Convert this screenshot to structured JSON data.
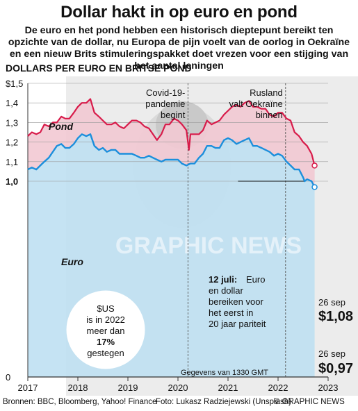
{
  "header": {
    "title": "Dollar hakt in op euro en pond",
    "subtitle": "De euro en het pond hebben een historisch dieptepunt bereikt ten opzichte van de dollar, nu Europa de pijn voelt van de oorlog in Oekraïne en een nieuw Brits stimuleringspakket doet vrezen voor een stijging van het aantal leningen",
    "units": "DOLLARS PER EURO EN BRITSE POND"
  },
  "annotations": {
    "covid": [
      "Covid-19-",
      "pandemie",
      "begint"
    ],
    "russia": [
      "Rusland",
      "valt Oekraïne",
      "binnen"
    ],
    "parity_bold": "12 juli:",
    "parity": [
      " Euro",
      "en dollar",
      "bereiken voor",
      "het eerst in",
      "20 jaar pariteit"
    ],
    "usd_note": [
      "$US",
      "is in 2022",
      "meer dan",
      "17%",
      "gestegen"
    ],
    "gbp_date": "26 sep",
    "gbp_value": "$1,08",
    "eur_date": "26 sep",
    "eur_value": "$0,97",
    "data_note": "Gegevens van 1330 GMT",
    "watermark": "GRAPHIC NEWS"
  },
  "footer": {
    "sources": "Bronnen: BBC, Bloomberg, Yahoo! Finance",
    "photo": "Foto: Lukasz Radziejewski (Unsplash)",
    "credit": "© GRAPHIC NEWS"
  },
  "colors": {
    "pound_line": "#d81b4a",
    "pound_fill": "#f2c9d3",
    "euro_line": "#1c8fdc",
    "euro_fill": "#bfe0f2",
    "grid": "#9a9a9a"
  },
  "chart_data": {
    "type": "area",
    "xlabel": "",
    "ylabel": "",
    "ylim": [
      0,
      1.5
    ],
    "xlim": [
      2017,
      2023
    ],
    "y_ticks": [
      "0",
      "1,0",
      "1,1",
      "1,2",
      "1,3",
      "1,4",
      "$1,5"
    ],
    "x_ticks": [
      "2017",
      "2018",
      "2019",
      "2020",
      "2021",
      "2022",
      "2023"
    ],
    "events": [
      {
        "label": "Covid-19-pandemie begint",
        "x": 2020.2
      },
      {
        "label": "Rusland valt Oekraïne binnen",
        "x": 2022.15
      }
    ],
    "series": [
      {
        "name": "Pond",
        "x": [
          2017.0,
          2017.08,
          2017.17,
          2017.25,
          2017.33,
          2017.42,
          2017.5,
          2017.58,
          2017.67,
          2017.75,
          2017.83,
          2017.92,
          2018.0,
          2018.08,
          2018.17,
          2018.25,
          2018.33,
          2018.42,
          2018.5,
          2018.58,
          2018.67,
          2018.75,
          2018.83,
          2018.92,
          2019.0,
          2019.08,
          2019.17,
          2019.25,
          2019.33,
          2019.42,
          2019.5,
          2019.58,
          2019.67,
          2019.75,
          2019.83,
          2019.92,
          2020.0,
          2020.08,
          2020.17,
          2020.22,
          2020.25,
          2020.33,
          2020.42,
          2020.5,
          2020.58,
          2020.67,
          2020.75,
          2020.83,
          2020.92,
          2021.0,
          2021.08,
          2021.17,
          2021.25,
          2021.33,
          2021.42,
          2021.5,
          2021.58,
          2021.67,
          2021.75,
          2021.83,
          2021.92,
          2022.0,
          2022.08,
          2022.17,
          2022.25,
          2022.33,
          2022.42,
          2022.5,
          2022.58,
          2022.67,
          2022.73
        ],
        "values": [
          1.23,
          1.25,
          1.24,
          1.25,
          1.29,
          1.28,
          1.3,
          1.3,
          1.33,
          1.32,
          1.32,
          1.35,
          1.38,
          1.4,
          1.4,
          1.42,
          1.35,
          1.33,
          1.31,
          1.29,
          1.29,
          1.3,
          1.28,
          1.27,
          1.29,
          1.31,
          1.31,
          1.3,
          1.28,
          1.27,
          1.24,
          1.21,
          1.24,
          1.29,
          1.29,
          1.32,
          1.31,
          1.29,
          1.26,
          1.16,
          1.24,
          1.24,
          1.24,
          1.26,
          1.31,
          1.29,
          1.3,
          1.31,
          1.34,
          1.36,
          1.38,
          1.39,
          1.38,
          1.4,
          1.41,
          1.38,
          1.38,
          1.37,
          1.37,
          1.34,
          1.33,
          1.35,
          1.35,
          1.32,
          1.31,
          1.25,
          1.23,
          1.2,
          1.18,
          1.14,
          1.08
        ]
      },
      {
        "name": "Euro",
        "x": [
          2017.0,
          2017.08,
          2017.17,
          2017.25,
          2017.33,
          2017.42,
          2017.5,
          2017.58,
          2017.67,
          2017.75,
          2017.83,
          2017.92,
          2018.0,
          2018.08,
          2018.17,
          2018.25,
          2018.33,
          2018.42,
          2018.5,
          2018.58,
          2018.67,
          2018.75,
          2018.83,
          2018.92,
          2019.0,
          2019.08,
          2019.17,
          2019.25,
          2019.33,
          2019.42,
          2019.5,
          2019.58,
          2019.67,
          2019.75,
          2019.83,
          2019.92,
          2020.0,
          2020.08,
          2020.17,
          2020.25,
          2020.33,
          2020.42,
          2020.5,
          2020.58,
          2020.67,
          2020.75,
          2020.83,
          2020.92,
          2021.0,
          2021.08,
          2021.17,
          2021.25,
          2021.33,
          2021.42,
          2021.5,
          2021.58,
          2021.67,
          2021.75,
          2021.83,
          2021.92,
          2022.0,
          2022.08,
          2022.17,
          2022.25,
          2022.33,
          2022.42,
          2022.5,
          2022.53,
          2022.58,
          2022.67,
          2022.73
        ],
        "values": [
          1.06,
          1.07,
          1.06,
          1.08,
          1.1,
          1.12,
          1.15,
          1.18,
          1.19,
          1.17,
          1.17,
          1.19,
          1.22,
          1.24,
          1.23,
          1.24,
          1.18,
          1.16,
          1.17,
          1.15,
          1.16,
          1.16,
          1.14,
          1.14,
          1.14,
          1.14,
          1.13,
          1.12,
          1.12,
          1.13,
          1.12,
          1.11,
          1.1,
          1.11,
          1.11,
          1.11,
          1.11,
          1.09,
          1.08,
          1.09,
          1.09,
          1.12,
          1.14,
          1.18,
          1.18,
          1.17,
          1.17,
          1.21,
          1.22,
          1.21,
          1.19,
          1.2,
          1.21,
          1.22,
          1.18,
          1.18,
          1.17,
          1.16,
          1.15,
          1.13,
          1.14,
          1.13,
          1.1,
          1.08,
          1.06,
          1.06,
          1.02,
          1.0,
          1.01,
          1.0,
          0.97
        ]
      }
    ]
  }
}
